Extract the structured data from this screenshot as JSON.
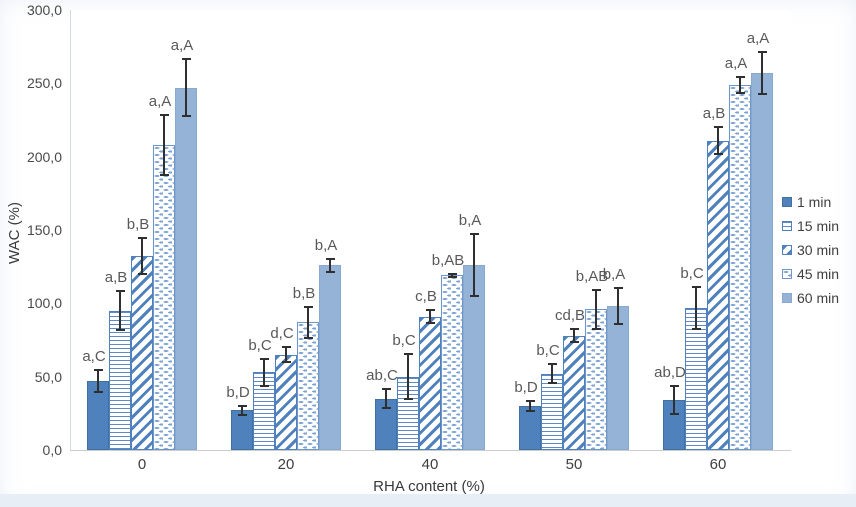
{
  "chart_data": {
    "type": "bar",
    "title": "",
    "xlabel": "RHA content (%)",
    "ylabel": "WAC (%)",
    "ylim": [
      0,
      300
    ],
    "ytick_step": 50,
    "ytick_labels": [
      "0,0",
      "50,0",
      "100,0",
      "150,0",
      "200,0",
      "250,0",
      "300,0"
    ],
    "categories": [
      "0",
      "20",
      "40",
      "50",
      "60"
    ],
    "grid": false,
    "legend_position": "right",
    "series": [
      {
        "name": "1 min",
        "pattern": "solid-dark",
        "values": [
          47,
          27,
          35,
          30,
          34
        ],
        "errors": [
          8,
          4,
          7,
          4,
          10
        ],
        "point_labels": [
          "a,C",
          "b,D",
          "ab,C",
          "b,D",
          "ab,D"
        ]
      },
      {
        "name": "15 min",
        "pattern": "horizontal-lines",
        "values": [
          95,
          53,
          50,
          52,
          97
        ],
        "errors": [
          14,
          10,
          16,
          7,
          15
        ],
        "point_labels": [
          "a,B",
          "b,C",
          "b,C",
          "b,C",
          "b,C"
        ]
      },
      {
        "name": "30 min",
        "pattern": "diagonal-stripes",
        "values": [
          132,
          65,
          91,
          78,
          211
        ],
        "errors": [
          13,
          6,
          5,
          5,
          10
        ],
        "point_labels": [
          "b,B",
          "d,C",
          "c,B",
          "cd,B",
          "a,B"
        ]
      },
      {
        "name": "45 min",
        "pattern": "dashed-dots",
        "values": [
          208,
          87,
          119,
          96,
          249
        ],
        "errors": [
          21,
          11,
          2,
          14,
          6
        ],
        "point_labels": [
          "a,A",
          "b,B",
          "b,AB",
          "b,AB",
          "a,A"
        ]
      },
      {
        "name": "60 min",
        "pattern": "solid-light",
        "values": [
          247,
          126,
          126,
          98,
          257
        ],
        "errors": [
          20,
          5,
          22,
          13,
          15
        ],
        "point_labels": [
          "a,A",
          "b,A",
          "b,A",
          "b,A",
          "a,A"
        ]
      }
    ],
    "style": {
      "bar_solid_dark": "#4f81bd",
      "bar_solid_light": "#95b3d7",
      "pattern_line": "#4f81bd",
      "error_bar": "#2f2f2f",
      "label_text": "#595959",
      "axis_text": "#444444",
      "axis_line": "#d3dae3",
      "page_edge": "#e8eef6"
    }
  }
}
